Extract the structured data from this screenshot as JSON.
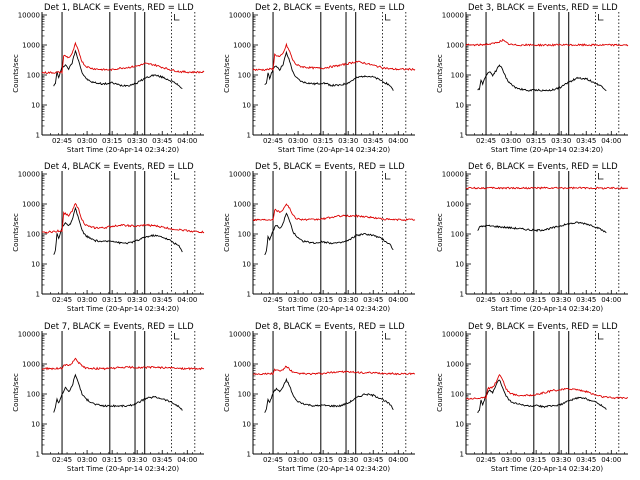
{
  "colors": {
    "events": "#000000",
    "lld": "#dd0000",
    "axis": "#000000"
  },
  "shared": {
    "ylabel": "Counts/sec",
    "xlabel": "Start Time (20-Apr-14 02:34:20)",
    "yticks": [
      "1",
      "10",
      "100",
      "1000",
      "10000"
    ],
    "xticks": [
      "02:45",
      "03:00",
      "03:15",
      "03:30",
      "03:45",
      "04:00"
    ],
    "xtick_minutes": [
      0,
      15,
      30,
      45,
      60,
      75
    ],
    "xlim_minutes": [
      -12,
      85
    ],
    "ylim_log10": [
      0,
      4.1
    ],
    "solid_vlines_minutes": [
      0,
      28.6,
      43.7,
      49.5
    ],
    "dotted_vlines_minutes": [
      65.5,
      79.5
    ]
  },
  "chart_data": [
    {
      "type": "line",
      "title": "Det 1, BLACK = Events, RED = LLD",
      "series": [
        {
          "name": "Events",
          "color": "#000000",
          "x": [
            -5,
            -4,
            -3,
            -2,
            0,
            2,
            4,
            6,
            8,
            10,
            12,
            14,
            17,
            20,
            25,
            30,
            35,
            40,
            45,
            50,
            55,
            60,
            65,
            70,
            72
          ],
          "y": [
            45,
            50,
            130,
            80,
            180,
            220,
            160,
            250,
            650,
            300,
            120,
            80,
            60,
            55,
            50,
            55,
            45,
            45,
            55,
            80,
            100,
            85,
            65,
            45,
            35
          ]
        },
        {
          "name": "LLD",
          "color": "#dd0000",
          "x": [
            -12,
            -5,
            0,
            1,
            4,
            6,
            8,
            10,
            12,
            14,
            17,
            20,
            25,
            30,
            35,
            40,
            45,
            50,
            55,
            60,
            65,
            70,
            75,
            80,
            85
          ],
          "y": [
            120,
            120,
            125,
            450,
            380,
            500,
            1100,
            600,
            280,
            200,
            170,
            160,
            150,
            150,
            170,
            180,
            200,
            240,
            220,
            180,
            150,
            130,
            125,
            125,
            125
          ]
        }
      ]
    },
    {
      "type": "line",
      "title": "Det 2, BLACK = Events, RED = LLD",
      "series": [
        {
          "name": "Events",
          "color": "#000000",
          "x": [
            -5,
            -4,
            -3,
            -2,
            0,
            2,
            4,
            6,
            8,
            10,
            12,
            14,
            17,
            20,
            25,
            30,
            35,
            40,
            45,
            50,
            55,
            60,
            65,
            70,
            72
          ],
          "y": [
            45,
            50,
            120,
            80,
            160,
            200,
            150,
            230,
            550,
            280,
            120,
            80,
            60,
            55,
            50,
            55,
            45,
            45,
            55,
            80,
            95,
            85,
            65,
            45,
            30
          ]
        },
        {
          "name": "LLD",
          "color": "#dd0000",
          "x": [
            -12,
            -5,
            0,
            1,
            4,
            6,
            8,
            10,
            12,
            14,
            17,
            20,
            25,
            30,
            35,
            40,
            45,
            50,
            55,
            60,
            65,
            70,
            75,
            80,
            85
          ],
          "y": [
            150,
            150,
            160,
            480,
            400,
            520,
            1000,
            600,
            300,
            220,
            190,
            180,
            170,
            170,
            190,
            210,
            240,
            280,
            250,
            210,
            180,
            160,
            155,
            155,
            155
          ]
        }
      ]
    },
    {
      "type": "line",
      "title": "Det 3, BLACK = Events, RED = LLD",
      "series": [
        {
          "name": "Events",
          "color": "#000000",
          "x": [
            -5,
            -4,
            -3,
            -2,
            0,
            2,
            4,
            6,
            8,
            10,
            12,
            14,
            17,
            20,
            25,
            30,
            35,
            40,
            45,
            50,
            55,
            60,
            65,
            70,
            72
          ],
          "y": [
            30,
            35,
            70,
            50,
            100,
            130,
            100,
            140,
            220,
            150,
            80,
            55,
            40,
            35,
            30,
            32,
            30,
            32,
            40,
            60,
            80,
            75,
            55,
            40,
            30
          ]
        },
        {
          "name": "LLD",
          "color": "#dd0000",
          "x": [
            -12,
            -5,
            0,
            4,
            8,
            10,
            12,
            14,
            17,
            20,
            30,
            40,
            50,
            60,
            70,
            85
          ],
          "y": [
            1000,
            1000,
            1050,
            1100,
            1300,
            1450,
            1200,
            1050,
            1000,
            1000,
            1000,
            1000,
            1000,
            1000,
            1000,
            1000
          ]
        }
      ]
    },
    {
      "type": "line",
      "title": "Det 4, BLACK = Events, RED = LLD",
      "series": [
        {
          "name": "Events",
          "color": "#000000",
          "x": [
            -5,
            -4,
            -3,
            -2,
            0,
            2,
            4,
            6,
            8,
            10,
            12,
            14,
            17,
            20,
            25,
            30,
            35,
            40,
            45,
            50,
            55,
            60,
            65,
            70,
            72
          ],
          "y": [
            20,
            30,
            100,
            70,
            160,
            250,
            180,
            280,
            700,
            320,
            130,
            90,
            70,
            60,
            55,
            60,
            50,
            50,
            60,
            80,
            90,
            80,
            60,
            40,
            25
          ]
        },
        {
          "name": "LLD",
          "color": "#dd0000",
          "x": [
            -12,
            -5,
            0,
            1,
            4,
            6,
            8,
            10,
            12,
            14,
            17,
            20,
            25,
            30,
            35,
            40,
            45,
            50,
            55,
            60,
            65,
            70,
            75,
            80,
            85
          ],
          "y": [
            110,
            120,
            130,
            500,
            420,
            550,
            1100,
            650,
            300,
            200,
            170,
            160,
            160,
            180,
            200,
            190,
            180,
            200,
            190,
            170,
            150,
            140,
            130,
            120,
            115
          ]
        }
      ]
    },
    {
      "type": "line",
      "title": "Det 5, BLACK = Events, RED = LLD",
      "series": [
        {
          "name": "Events",
          "color": "#000000",
          "x": [
            -5,
            -4,
            -3,
            -2,
            0,
            2,
            4,
            6,
            8,
            10,
            12,
            14,
            17,
            20,
            25,
            30,
            35,
            40,
            45,
            50,
            55,
            60,
            65,
            70,
            72
          ],
          "y": [
            20,
            28,
            80,
            60,
            130,
            200,
            150,
            220,
            500,
            260,
            120,
            80,
            60,
            55,
            50,
            55,
            50,
            50,
            60,
            90,
            100,
            90,
            70,
            45,
            30
          ]
        },
        {
          "name": "LLD",
          "color": "#dd0000",
          "x": [
            -12,
            -5,
            0,
            1,
            4,
            6,
            8,
            10,
            12,
            14,
            17,
            20,
            25,
            30,
            35,
            40,
            45,
            50,
            55,
            60,
            65,
            70,
            75,
            80,
            85
          ],
          "y": [
            300,
            300,
            310,
            650,
            550,
            650,
            1050,
            700,
            420,
            330,
            310,
            300,
            300,
            320,
            360,
            400,
            400,
            400,
            380,
            350,
            320,
            300,
            300,
            300,
            300
          ]
        }
      ]
    },
    {
      "type": "line",
      "title": "Det 6, BLACK = Events, RED = LLD",
      "series": [
        {
          "name": "Events",
          "color": "#000000",
          "x": [
            -5,
            -4,
            0,
            5,
            10,
            15,
            20,
            25,
            30,
            35,
            40,
            45,
            50,
            55,
            60,
            65,
            70,
            72
          ],
          "y": [
            130,
            170,
            190,
            180,
            170,
            160,
            150,
            140,
            130,
            140,
            160,
            190,
            220,
            240,
            220,
            180,
            130,
            110
          ]
        },
        {
          "name": "LLD",
          "color": "#dd0000",
          "x": [
            -12,
            0,
            20,
            40,
            60,
            85
          ],
          "y": [
            3400,
            3400,
            3400,
            3400,
            3400,
            3400
          ]
        }
      ]
    },
    {
      "type": "line",
      "title": "Det 7, BLACK = Events, RED = LLD",
      "series": [
        {
          "name": "Events",
          "color": "#000000",
          "x": [
            -5,
            -4,
            -3,
            -2,
            0,
            2,
            4,
            6,
            8,
            10,
            12,
            14,
            17,
            20,
            25,
            30,
            35,
            40,
            45,
            50,
            55,
            60,
            65,
            70,
            72
          ],
          "y": [
            25,
            35,
            70,
            50,
            100,
            160,
            120,
            180,
            450,
            220,
            100,
            70,
            55,
            45,
            40,
            40,
            40,
            40,
            50,
            70,
            80,
            70,
            55,
            38,
            28
          ]
        },
        {
          "name": "LLD",
          "color": "#dd0000",
          "x": [
            -12,
            -5,
            0,
            1,
            4,
            6,
            8,
            10,
            12,
            14,
            17,
            20,
            25,
            30,
            35,
            40,
            45,
            50,
            55,
            60,
            65,
            70,
            75,
            80,
            85
          ],
          "y": [
            700,
            700,
            720,
            950,
            900,
            1050,
            1600,
            1100,
            850,
            750,
            720,
            700,
            700,
            720,
            760,
            780,
            760,
            760,
            780,
            760,
            740,
            720,
            700,
            700,
            700
          ]
        }
      ]
    },
    {
      "type": "line",
      "title": "Det 8, BLACK = Events, RED = LLD",
      "series": [
        {
          "name": "Events",
          "color": "#000000",
          "x": [
            -5,
            -4,
            -3,
            -2,
            0,
            2,
            4,
            6,
            8,
            10,
            12,
            14,
            17,
            20,
            25,
            30,
            35,
            40,
            45,
            50,
            55,
            60,
            65,
            70,
            72
          ],
          "y": [
            25,
            30,
            70,
            50,
            110,
            150,
            120,
            170,
            300,
            180,
            90,
            60,
            50,
            45,
            40,
            42,
            40,
            40,
            50,
            75,
            100,
            90,
            70,
            45,
            30
          ]
        },
        {
          "name": "LLD",
          "color": "#dd0000",
          "x": [
            -12,
            -5,
            0,
            1,
            4,
            6,
            8,
            10,
            12,
            14,
            17,
            20,
            25,
            30,
            35,
            40,
            45,
            50,
            55,
            60,
            65,
            70,
            75,
            80,
            85
          ],
          "y": [
            470,
            470,
            480,
            650,
            580,
            650,
            850,
            650,
            520,
            490,
            480,
            470,
            470,
            480,
            520,
            560,
            540,
            520,
            510,
            500,
            490,
            480,
            470,
            470,
            470
          ]
        }
      ]
    },
    {
      "type": "line",
      "title": "Det 9, BLACK = Events, RED = LLD",
      "series": [
        {
          "name": "Events",
          "color": "#000000",
          "x": [
            -5,
            -4,
            -3,
            -2,
            0,
            2,
            4,
            6,
            8,
            10,
            12,
            14,
            17,
            20,
            25,
            30,
            35,
            40,
            45,
            50,
            55,
            60,
            65,
            70,
            72
          ],
          "y": [
            25,
            30,
            60,
            45,
            90,
            130,
            110,
            200,
            300,
            160,
            90,
            60,
            50,
            45,
            40,
            40,
            38,
            40,
            45,
            60,
            75,
            70,
            55,
            40,
            30
          ]
        },
        {
          "name": "LLD",
          "color": "#dd0000",
          "x": [
            -12,
            -5,
            0,
            1,
            4,
            6,
            8,
            10,
            12,
            14,
            17,
            20,
            25,
            30,
            35,
            40,
            45,
            50,
            55,
            60,
            65,
            70,
            75,
            80,
            85
          ],
          "y": [
            70,
            72,
            75,
            150,
            170,
            250,
            450,
            300,
            150,
            110,
            95,
            90,
            90,
            95,
            110,
            130,
            140,
            150,
            140,
            120,
            95,
            80,
            75,
            75,
            75
          ]
        }
      ]
    }
  ]
}
